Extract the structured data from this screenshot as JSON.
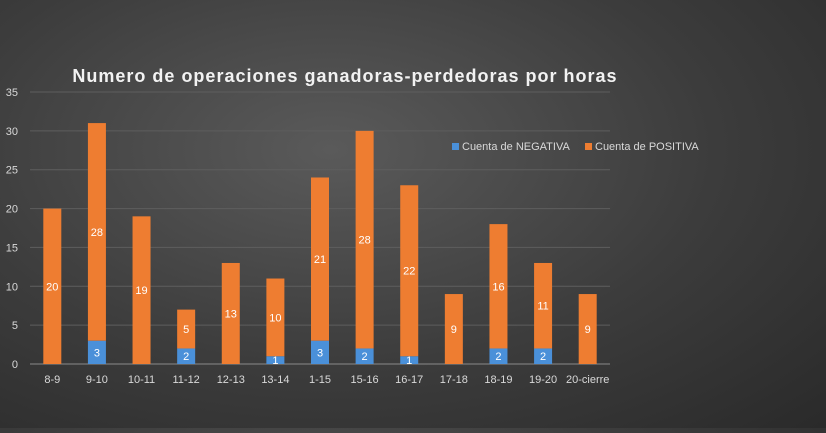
{
  "chart_data": {
    "type": "bar",
    "stacked": true,
    "title": "Numero de operaciones ganadoras-perdedoras por horas",
    "categories": [
      "8-9",
      "9-10",
      "10-11",
      "11-12",
      "12-13",
      "13-14",
      "1-15",
      "15-16",
      "16-17",
      "17-18",
      "18-19",
      "19-20",
      "20-cierre"
    ],
    "series": [
      {
        "name": "Cuenta de NEGATIVA",
        "color": "#4a90d9",
        "values": [
          0,
          3,
          0,
          2,
          0,
          1,
          3,
          2,
          1,
          0,
          2,
          2,
          0
        ]
      },
      {
        "name": "Cuenta de POSITIVA",
        "color": "#ee7d31",
        "values": [
          20,
          28,
          19,
          5,
          13,
          10,
          21,
          28,
          22,
          9,
          16,
          11,
          9
        ]
      }
    ],
    "ylim": [
      0,
      35
    ],
    "yticks": [
      0,
      5,
      10,
      15,
      20,
      25,
      30,
      35
    ],
    "grid": true,
    "legend_position": "right"
  }
}
